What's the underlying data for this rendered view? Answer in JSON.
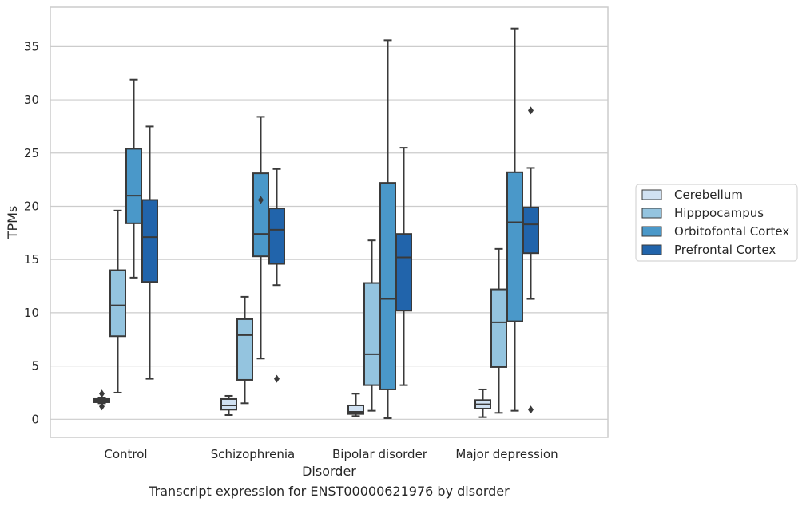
{
  "caption": "Transcript expression for ENST00000621976 by disorder",
  "chart_data": {
    "type": "box",
    "xlabel": "Disorder",
    "ylabel": "TPMs",
    "ylim": [
      -1.7,
      38.7
    ],
    "yticks": [
      0,
      5,
      10,
      15,
      20,
      25,
      30,
      35
    ],
    "grid": "horizontal",
    "legend_position": "right",
    "categories": [
      "Control",
      "Schizophrenia",
      "Bipolar disorder",
      "Major depression"
    ],
    "series": [
      {
        "name": "Cerebellum",
        "color": "#d0e1f2",
        "boxes": [
          {
            "whisker_low": 1.5,
            "q1": 1.6,
            "median": 1.8,
            "q3": 1.9,
            "whisker_high": 2.0,
            "outliers": [
              2.4,
              1.2
            ]
          },
          {
            "whisker_low": 0.4,
            "q1": 0.9,
            "median": 1.3,
            "q3": 1.9,
            "whisker_high": 2.2,
            "outliers": []
          },
          {
            "whisker_low": 0.3,
            "q1": 0.5,
            "median": 0.7,
            "q3": 1.3,
            "whisker_high": 2.4,
            "outliers": []
          },
          {
            "whisker_low": 0.2,
            "q1": 1.0,
            "median": 1.4,
            "q3": 1.8,
            "whisker_high": 2.8,
            "outliers": []
          }
        ]
      },
      {
        "name": "Hipppocampus",
        "color": "#94c4df",
        "boxes": [
          {
            "whisker_low": 2.5,
            "q1": 7.8,
            "median": 10.7,
            "q3": 14.0,
            "whisker_high": 19.6,
            "outliers": []
          },
          {
            "whisker_low": 1.5,
            "q1": 3.7,
            "median": 7.9,
            "q3": 9.4,
            "whisker_high": 11.5,
            "outliers": []
          },
          {
            "whisker_low": 0.8,
            "q1": 3.2,
            "median": 6.1,
            "q3": 12.8,
            "whisker_high": 16.8,
            "outliers": []
          },
          {
            "whisker_low": 0.6,
            "q1": 4.9,
            "median": 9.1,
            "q3": 12.2,
            "whisker_high": 16.0,
            "outliers": []
          }
        ]
      },
      {
        "name": "Orbitofontal Cortex",
        "color": "#4a98c9",
        "boxes": [
          {
            "whisker_low": 13.3,
            "q1": 18.4,
            "median": 21.0,
            "q3": 25.4,
            "whisker_high": 31.9,
            "outliers": []
          },
          {
            "whisker_low": 5.7,
            "q1": 15.3,
            "median": 17.4,
            "q3": 23.1,
            "whisker_high": 28.4,
            "outliers": [
              20.6
            ]
          },
          {
            "whisker_low": 0.1,
            "q1": 2.8,
            "median": 11.3,
            "q3": 22.2,
            "whisker_high": 35.6,
            "outliers": []
          },
          {
            "whisker_low": 0.8,
            "q1": 9.2,
            "median": 18.5,
            "q3": 23.2,
            "whisker_high": 36.7,
            "outliers": []
          }
        ]
      },
      {
        "name": "Prefrontal Cortex",
        "color": "#2164ab",
        "boxes": [
          {
            "whisker_low": 3.8,
            "q1": 12.9,
            "median": 17.1,
            "q3": 20.6,
            "whisker_high": 27.5,
            "outliers": []
          },
          {
            "whisker_low": 12.6,
            "q1": 14.6,
            "median": 17.8,
            "q3": 19.8,
            "whisker_high": 23.5,
            "outliers": [
              3.8
            ]
          },
          {
            "whisker_low": 3.2,
            "q1": 10.2,
            "median": 15.2,
            "q3": 17.4,
            "whisker_high": 25.5,
            "outliers": []
          },
          {
            "whisker_low": 11.3,
            "q1": 15.6,
            "median": 18.3,
            "q3": 19.9,
            "whisker_high": 23.6,
            "outliers": [
              29.0,
              0.9
            ]
          }
        ]
      }
    ]
  }
}
